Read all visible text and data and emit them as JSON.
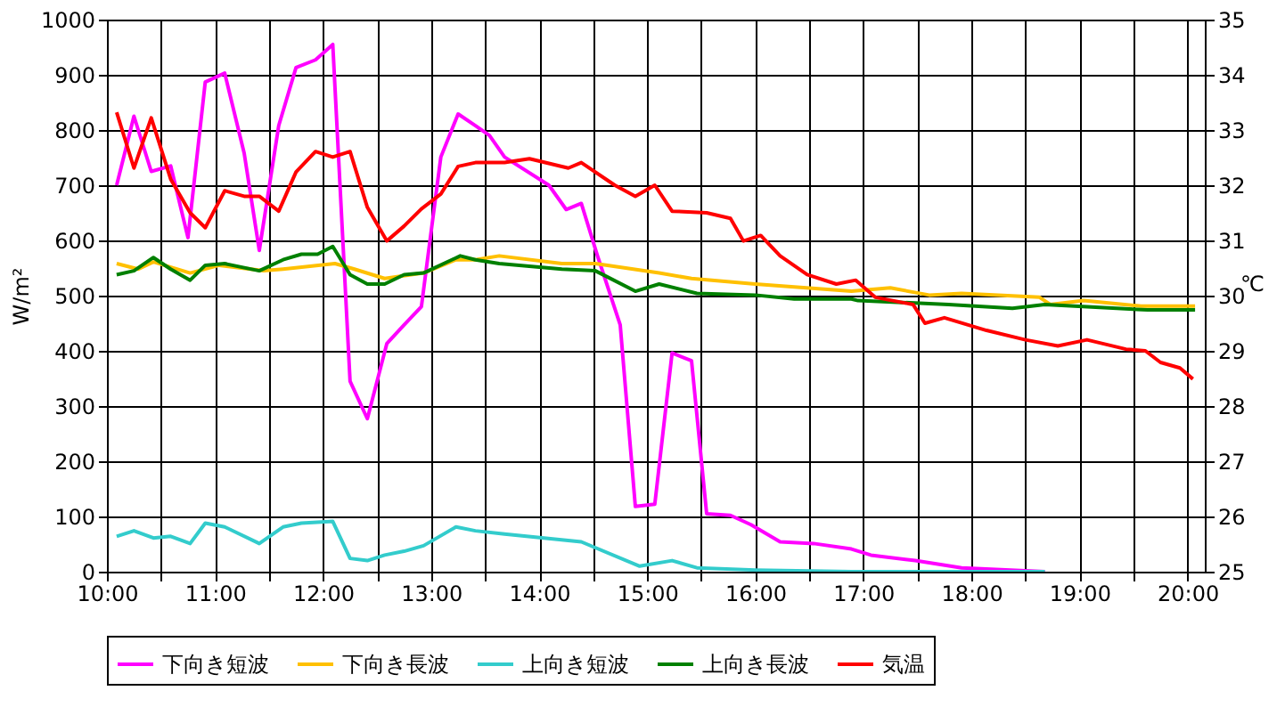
{
  "chart_data": {
    "type": "line",
    "ylabel": "W/m²",
    "y2label": "℃",
    "xlim": [
      10,
      20.16
    ],
    "xticks": [
      {
        "value": 10,
        "label": "10:00"
      },
      {
        "value": 10.5,
        "label": null
      },
      {
        "value": 11,
        "label": "11:00"
      },
      {
        "value": 11.5,
        "label": null
      },
      {
        "value": 12,
        "label": "12:00"
      },
      {
        "value": 12.5,
        "label": null
      },
      {
        "value": 13,
        "label": "13:00"
      },
      {
        "value": 13.5,
        "label": null
      },
      {
        "value": 14,
        "label": "14:00"
      },
      {
        "value": 14.5,
        "label": null
      },
      {
        "value": 15,
        "label": "15:00"
      },
      {
        "value": 15.5,
        "label": null
      },
      {
        "value": 16,
        "label": "16:00"
      },
      {
        "value": 16.5,
        "label": null
      },
      {
        "value": 17,
        "label": "17:00"
      },
      {
        "value": 17.5,
        "label": null
      },
      {
        "value": 18,
        "label": "18:00"
      },
      {
        "value": 18.5,
        "label": null
      },
      {
        "value": 19,
        "label": "19:00"
      },
      {
        "value": 19.5,
        "label": null
      },
      {
        "value": 20,
        "label": "20:00"
      }
    ],
    "ylim": [
      0,
      1000
    ],
    "yticks": [
      0,
      100,
      200,
      300,
      400,
      500,
      600,
      700,
      800,
      900,
      1000
    ],
    "y2lim": [
      25,
      35
    ],
    "y2ticks": [
      25,
      26,
      27,
      28,
      29,
      30,
      31,
      32,
      33,
      34,
      35
    ],
    "grid": true,
    "legend": "bottom",
    "marker": "none",
    "line_style": "solid",
    "series": [
      {
        "name": "下向き短波",
        "color": "#ff00ff",
        "x": [
          10.09,
          10.25,
          10.41,
          10.59,
          10.75,
          10.91,
          11.09,
          11.27,
          11.41,
          11.59,
          11.75,
          11.93,
          12.09,
          12.25,
          12.41,
          12.59,
          12.75,
          12.91,
          13.09,
          13.25,
          13.41,
          13.54,
          13.68,
          14.09,
          14.25,
          14.39,
          14.54,
          14.75,
          14.89,
          15.07,
          15.23,
          15.41,
          15.55,
          15.77,
          15.96,
          16.23,
          16.54,
          16.89,
          17.07,
          17.48,
          17.91,
          18.68
        ],
        "values": [
          700,
          825,
          725,
          735,
          605,
          887,
          903,
          758,
          582,
          808,
          913,
          927,
          955,
          345,
          277,
          413,
          447,
          480,
          751,
          829,
          808,
          790,
          751,
          700,
          656,
          667,
          572,
          447,
          118,
          122,
          396,
          382,
          105,
          102,
          85,
          54,
          51,
          41,
          30,
          20,
          7,
          0
        ]
      },
      {
        "name": "下向き長波",
        "color": "#ffc000",
        "x": [
          10.09,
          10.29,
          10.43,
          10.77,
          11.04,
          11.45,
          11.63,
          12.11,
          12.29,
          12.57,
          12.93,
          13.23,
          13.41,
          13.63,
          14.21,
          14.52,
          15.11,
          15.41,
          16.0,
          16.89,
          17.25,
          17.61,
          17.91,
          18.63,
          18.73,
          19.04,
          19.57,
          20.07
        ],
        "values": [
          558,
          548,
          561,
          541,
          555,
          545,
          548,
          558,
          548,
          531,
          541,
          565,
          565,
          572,
          558,
          558,
          541,
          531,
          521,
          508,
          514,
          501,
          504,
          497,
          484,
          491,
          481,
          481
        ]
      },
      {
        "name": "上向き短波",
        "color": "#33cccc",
        "x": [
          10.09,
          10.25,
          10.43,
          10.59,
          10.77,
          10.91,
          11.09,
          11.41,
          11.63,
          11.8,
          12.09,
          12.25,
          12.41,
          12.57,
          12.75,
          12.93,
          13.23,
          13.41,
          13.68,
          14.39,
          14.93,
          15.23,
          15.46,
          16.0,
          16.89,
          18.68
        ],
        "values": [
          64,
          74,
          61,
          64,
          51,
          88,
          81,
          51,
          81,
          88,
          91,
          24,
          20,
          30,
          37,
          47,
          81,
          74,
          68,
          54,
          10,
          20,
          7,
          3,
          0,
          0
        ]
      },
      {
        "name": "上向き長波",
        "color": "#008000",
        "x": [
          10.09,
          10.25,
          10.43,
          10.59,
          10.77,
          10.91,
          11.09,
          11.41,
          11.63,
          11.8,
          11.95,
          12.09,
          12.25,
          12.41,
          12.57,
          12.75,
          12.93,
          13.27,
          13.41,
          13.63,
          14.21,
          14.52,
          14.89,
          15.11,
          15.46,
          16.0,
          16.36,
          16.89,
          16.95,
          17.79,
          18.38,
          18.68,
          19.63,
          20.07
        ],
        "values": [
          538,
          545,
          569,
          548,
          528,
          555,
          558,
          545,
          565,
          575,
          575,
          589,
          538,
          521,
          521,
          538,
          541,
          572,
          565,
          558,
          548,
          545,
          508,
          521,
          504,
          501,
          494,
          494,
          491,
          484,
          477,
          484,
          474,
          474
        ]
      },
      {
        "name": "気温",
        "color": "#ff0000",
        "axis": "y2",
        "x": [
          10.09,
          10.25,
          10.41,
          10.59,
          10.77,
          10.91,
          11.09,
          11.27,
          11.41,
          11.59,
          11.75,
          11.93,
          12.09,
          12.25,
          12.41,
          12.59,
          12.75,
          12.91,
          13.09,
          13.25,
          13.41,
          13.68,
          13.91,
          14.27,
          14.39,
          14.7,
          14.89,
          15.07,
          15.23,
          15.55,
          15.77,
          15.89,
          16.05,
          16.23,
          16.48,
          16.75,
          16.93,
          17.11,
          17.46,
          17.57,
          17.75,
          18.14,
          18.5,
          18.8,
          19.07,
          19.43,
          19.61,
          19.75,
          19.93,
          20.05
        ],
        "values": [
          33.32,
          32.31,
          33.22,
          32.11,
          31.5,
          31.23,
          31.9,
          31.8,
          31.8,
          31.53,
          32.24,
          32.61,
          32.51,
          32.61,
          31.6,
          30.99,
          31.26,
          31.57,
          31.84,
          32.34,
          32.41,
          32.41,
          32.48,
          32.31,
          32.41,
          32.0,
          31.8,
          32.0,
          31.53,
          31.5,
          31.4,
          30.99,
          31.09,
          30.72,
          30.38,
          30.21,
          30.28,
          29.97,
          29.84,
          29.5,
          29.6,
          29.37,
          29.2,
          29.09,
          29.2,
          29.03,
          29.0,
          28.79,
          28.69,
          28.49
        ]
      }
    ]
  }
}
